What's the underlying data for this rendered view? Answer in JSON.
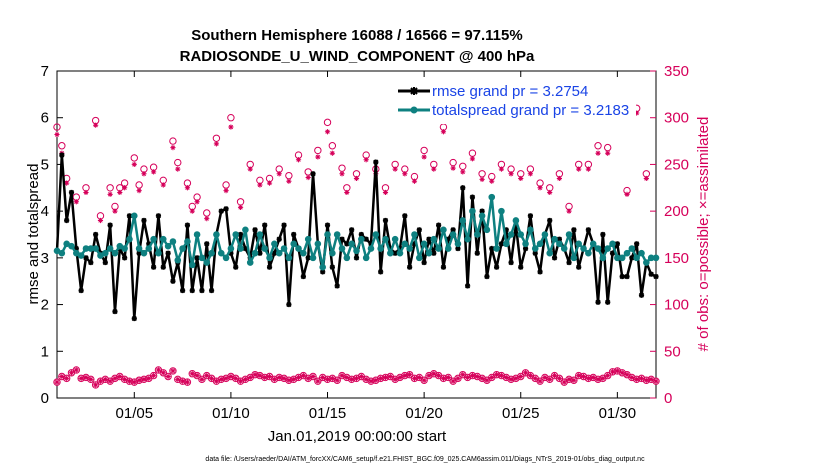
{
  "chart_data": {
    "type": "line",
    "title": "Southern Hemisphere 16088 / 16566 = 97.115%",
    "subtitle": "RADIOSONDE_U_WIND_COMPONENT @ 400 hPa",
    "xlabel": "Jan.01,2019 00:00:00 start",
    "ylabel_left": "rmse and totalspread",
    "ylabel_right": "# of obs: o=possible; ×=assimilated",
    "footer": "data file: /Users/raeder/DAI/ATM_forcXX/CAM6_setup/f.e21.FHIST_BGC.f09_025.CAM6assim.011/Diags_NTrS_2019-01/obs_diag_output.nc",
    "xlim": [
      1,
      32
    ],
    "ylim_left": [
      0,
      7
    ],
    "ylim_right": [
      0,
      350
    ],
    "xticks": [
      5,
      10,
      15,
      20,
      25,
      30
    ],
    "xtick_labels": [
      "01/05",
      "01/10",
      "01/15",
      "01/20",
      "01/25",
      "01/30"
    ],
    "yticks_left": [
      0,
      1,
      2,
      3,
      4,
      5,
      6,
      7
    ],
    "yticks_right": [
      0,
      50,
      100,
      150,
      200,
      250,
      300,
      350
    ],
    "colors": {
      "rmse": "#000000",
      "spread": "#0e8080",
      "obs": "#d6005a",
      "legend_text": "#1a44e6"
    },
    "series": [
      {
        "name": "rmse grand pr = 3.2754",
        "axis": "left",
        "x_start": 1,
        "x_step": 0.25,
        "values": [
          3.15,
          5.2,
          3.8,
          4.4,
          3.2,
          2.3,
          3.0,
          2.9,
          3.5,
          3.1,
          2.9,
          3.7,
          1.85,
          3.2,
          3.0,
          3.9,
          1.7,
          3.1,
          3.8,
          3.3,
          2.8,
          3.9,
          2.8,
          3.1,
          2.5,
          2.9,
          2.3,
          3.7,
          2.3,
          3.0,
          2.3,
          3.3,
          2.3,
          3.5,
          4.0,
          4.05,
          3.1,
          2.8,
          3.5,
          3.2,
          3.0,
          3.6,
          3.1,
          3.7,
          2.8,
          3.1,
          3.4,
          3.7,
          2.0,
          3.5,
          3.2,
          2.6,
          3.0,
          4.8,
          3.3,
          2.7,
          3.7,
          2.8,
          2.4,
          3.4,
          3.3,
          3.6,
          3.0,
          3.5,
          3.4,
          3.3,
          5.05,
          2.7,
          3.8,
          3.2,
          3.1,
          3.2,
          3.9,
          2.8,
          3.3,
          3.6,
          2.9,
          3.4,
          3.1,
          3.7,
          2.8,
          3.4,
          3.6,
          3.2,
          4.5,
          2.4,
          4.3,
          3.1,
          4.0,
          2.6,
          3.2,
          2.8,
          3.3,
          3.6,
          2.9,
          3.7,
          2.8,
          3.2,
          3.9,
          3.1,
          2.7,
          3.5,
          3.8,
          3.0,
          3.4,
          3.2,
          2.9,
          3.6,
          2.8,
          3.2,
          3.6,
          3.3,
          2.05,
          3.5,
          2.05,
          3.1,
          3.3,
          2.6,
          2.6,
          3.0,
          3.3,
          2.2,
          2.9,
          2.65,
          2.6
        ]
      },
      {
        "name": "totalspread grand pr = 3.2183",
        "axis": "left",
        "x_start": 1,
        "x_step": 0.25,
        "values": [
          3.15,
          3.1,
          3.3,
          3.25,
          3.1,
          3.05,
          3.2,
          3.2,
          3.2,
          3.05,
          3.1,
          3.2,
          3.1,
          3.25,
          3.2,
          3.4,
          3.9,
          3.2,
          3.1,
          3.2,
          3.4,
          3.1,
          3.4,
          3.25,
          3.35,
          2.95,
          3.2,
          3.35,
          2.85,
          3.5,
          3.0,
          2.9,
          3.1,
          3.5,
          3.1,
          3.0,
          3.2,
          3.5,
          3.2,
          3.6,
          2.9,
          3.1,
          3.5,
          3.2,
          3.0,
          3.3,
          3.1,
          3.2,
          3.0,
          3.3,
          3.2,
          3.1,
          3.4,
          3.0,
          3.3,
          2.8,
          3.5,
          3.1,
          3.5,
          3.2,
          3.0,
          3.3,
          3.15,
          3.4,
          3.0,
          3.2,
          3.5,
          3.2,
          3.4,
          3.1,
          3.4,
          3.1,
          3.3,
          3.2,
          3.5,
          3.0,
          3.3,
          3.1,
          3.4,
          3.2,
          3.6,
          3.2,
          3.5,
          3.3,
          3.8,
          3.4,
          4.0,
          3.5,
          3.9,
          3.6,
          4.3,
          3.2,
          4.0,
          3.3,
          3.5,
          3.8,
          3.5,
          3.3,
          3.6,
          3.2,
          3.3,
          3.5,
          3.1,
          3.4,
          3.3,
          3.2,
          3.5,
          3.0,
          3.3,
          3.2,
          3.1,
          3.3,
          3.2,
          3.0,
          3.2,
          3.3,
          3.0,
          3.0,
          3.1,
          3.2,
          3.0,
          3.1,
          2.9,
          3.0,
          3.0
        ]
      },
      {
        "name": "obs possible",
        "axis": "right",
        "x_start": 1,
        "x_step": 0.25,
        "marker": "circle",
        "values": [
          17,
          23,
          21,
          27,
          30,
          21,
          22,
          20,
          14,
          18,
          20,
          18,
          21,
          23,
          20,
          18,
          17,
          19,
          20,
          21,
          24,
          30,
          27,
          23,
          29,
          20,
          18,
          17,
          26,
          24,
          20,
          24,
          21,
          18,
          20,
          21,
          23,
          21,
          18,
          20,
          22,
          25,
          24,
          22,
          23,
          20,
          22,
          21,
          19,
          20,
          22,
          24,
          21,
          23,
          18,
          22,
          20,
          21,
          19,
          24,
          22,
          20,
          21,
          23,
          20,
          18,
          19,
          21,
          22,
          23,
          20,
          22,
          24,
          25,
          21,
          22,
          19,
          24,
          26,
          24,
          21,
          22,
          18,
          21,
          25,
          22,
          24,
          23,
          21,
          19,
          22,
          25,
          24,
          22,
          20,
          21,
          23,
          27,
          24,
          21,
          18,
          22,
          20,
          24,
          21,
          17,
          20,
          19,
          24,
          23,
          21,
          22,
          20,
          21,
          24,
          28,
          29,
          27,
          25,
          22,
          20,
          21,
          19,
          20,
          18
        ]
      },
      {
        "name": "obs assimilated",
        "axis": "right",
        "x_start": 1,
        "x_step": 0.25,
        "marker": "asterisk",
        "values": [
          17,
          23,
          21,
          27,
          30,
          21,
          22,
          20,
          14,
          18,
          20,
          18,
          21,
          23,
          20,
          18,
          17,
          19,
          20,
          21,
          24,
          30,
          27,
          23,
          29,
          20,
          18,
          17,
          26,
          24,
          20,
          24,
          21,
          18,
          20,
          21,
          23,
          21,
          18,
          20,
          22,
          25,
          24,
          22,
          23,
          20,
          22,
          21,
          19,
          20,
          22,
          24,
          21,
          23,
          18,
          22,
          20,
          21,
          19,
          24,
          22,
          20,
          21,
          23,
          20,
          18,
          19,
          21,
          22,
          23,
          20,
          22,
          24,
          25,
          21,
          22,
          19,
          24,
          26,
          24,
          21,
          22,
          18,
          21,
          25,
          22,
          24,
          23,
          21,
          19,
          22,
          25,
          24,
          22,
          20,
          21,
          23,
          27,
          24,
          21,
          18,
          22,
          20,
          24,
          21,
          17,
          20,
          19,
          24,
          23,
          21,
          22,
          20,
          21,
          24,
          28,
          29,
          27,
          25,
          22,
          20,
          21,
          19,
          20,
          18
        ]
      },
      {
        "name": "obs possible (high)",
        "axis": "right",
        "x": [
          1,
          1.25,
          1.5,
          2,
          2.5,
          3,
          3.25,
          3.75,
          4,
          4.25,
          4.5,
          5,
          5.25,
          5.5,
          6,
          6.5,
          7,
          7.25,
          7.75,
          8,
          8.25,
          8.75,
          9.25,
          9.75,
          10,
          10.5,
          11,
          11.5,
          12,
          12.5,
          13,
          13.5,
          14,
          14.5,
          15,
          15.25,
          15.75,
          16,
          16.5,
          17,
          17.5,
          18,
          18.5,
          19,
          19.5,
          20,
          20.5,
          21,
          21.5,
          22,
          22.5,
          23,
          23.5,
          24,
          24.5,
          25,
          25.5,
          26,
          26.5,
          27,
          27.5,
          28,
          28.5,
          29,
          29.5,
          30,
          30.5,
          31,
          31.5
        ],
        "marker": "circle",
        "values": [
          290,
          270,
          235,
          215,
          225,
          297,
          195,
          225,
          205,
          225,
          230,
          257,
          228,
          245,
          247,
          233,
          275,
          252,
          230,
          205,
          215,
          198,
          278,
          228,
          300,
          210,
          250,
          233,
          235,
          245,
          238,
          260,
          242,
          265,
          295,
          270,
          246,
          225,
          240,
          260,
          245,
          225,
          250,
          245,
          237,
          265,
          250,
          290,
          252,
          248,
          262,
          240,
          237,
          250,
          245,
          240,
          245,
          230,
          225,
          240,
          205,
          250,
          250,
          270,
          268,
          305,
          222,
          310,
          240
        ]
      },
      {
        "name": "obs assimilated (high)",
        "axis": "right",
        "x": [
          1,
          1.25,
          1.5,
          2,
          2.5,
          3,
          3.25,
          3.75,
          4,
          4.25,
          4.5,
          5,
          5.25,
          5.5,
          6,
          6.5,
          7,
          7.25,
          7.75,
          8,
          8.25,
          8.75,
          9.25,
          9.75,
          10,
          10.5,
          11,
          11.5,
          12,
          12.5,
          13,
          13.5,
          14,
          14.5,
          15,
          15.25,
          15.75,
          16,
          16.5,
          17,
          17.5,
          18,
          18.5,
          19,
          19.5,
          20,
          20.5,
          21,
          21.5,
          22,
          22.5,
          23,
          23.5,
          24,
          24.5,
          25,
          25.5,
          26,
          26.5,
          27,
          27.5,
          28,
          28.5,
          29,
          29.5,
          30,
          30.5,
          31,
          31.5
        ],
        "marker": "asterisk",
        "values": [
          282,
          262,
          230,
          210,
          220,
          292,
          190,
          218,
          200,
          220,
          225,
          250,
          222,
          240,
          242,
          228,
          268,
          245,
          225,
          200,
          210,
          192,
          272,
          222,
          290,
          204,
          245,
          228,
          230,
          240,
          232,
          255,
          236,
          258,
          285,
          262,
          240,
          220,
          235,
          255,
          240,
          220,
          245,
          240,
          232,
          258,
          245,
          285,
          246,
          242,
          256,
          234,
          232,
          245,
          240,
          235,
          240,
          225,
          220,
          235,
          200,
          245,
          245,
          262,
          262,
          300,
          218,
          305,
          235
        ]
      }
    ],
    "legend": {
      "position": "top-right",
      "entries": [
        "rmse grand pr = 3.2754",
        "totalspread grand pr = 3.2183"
      ]
    }
  }
}
